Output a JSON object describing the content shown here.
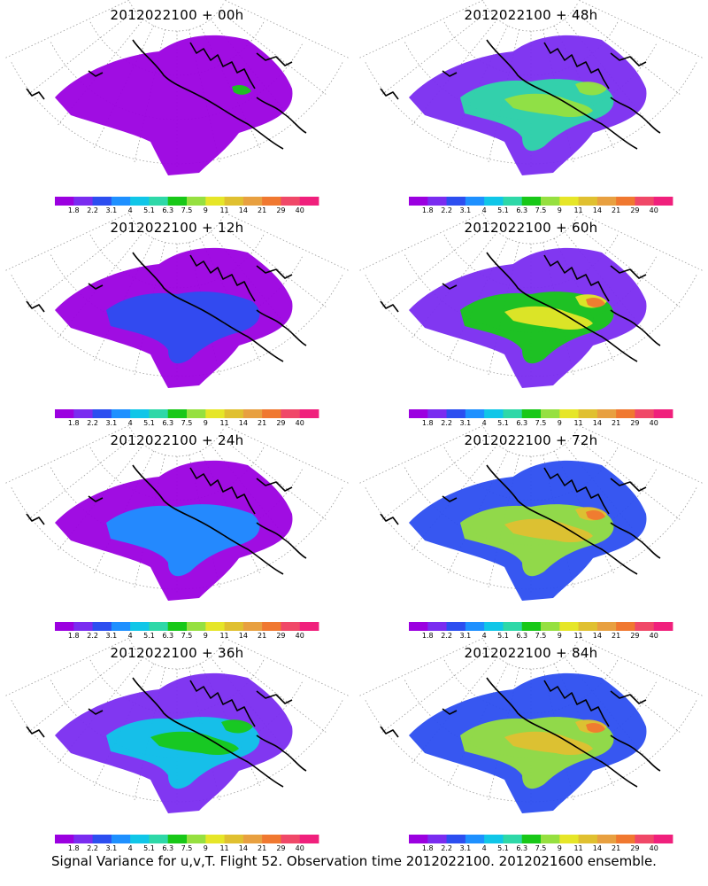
{
  "colors": {
    "scale": [
      "#9b00e0",
      "#7a2cf0",
      "#2c4ef0",
      "#1e90ff",
      "#10c6e8",
      "#2ed8a8",
      "#18c818",
      "#96e040",
      "#e6e628",
      "#e0c030",
      "#e8a040",
      "#f07830",
      "#f04868",
      "#f0207c"
    ],
    "coast": "#000000",
    "graticule": "#9a9a9a"
  },
  "legend_labels": [
    "1.8",
    "2.2",
    "3.1",
    "4",
    "5.1",
    "6.3",
    "7.5",
    "9",
    "11",
    "14",
    "21",
    "29",
    "40"
  ],
  "panels": [
    {
      "title": "2012022100 + 00h",
      "level": 0
    },
    {
      "title": "2012022100 + 48h",
      "level": 4
    },
    {
      "title": "2012022100 + 12h",
      "level": 1
    },
    {
      "title": "2012022100 + 60h",
      "level": 5
    },
    {
      "title": "2012022100 + 24h",
      "level": 2
    },
    {
      "title": "2012022100 + 72h",
      "level": 6
    },
    {
      "title": "2012022100 + 36h",
      "level": 3
    },
    {
      "title": "2012022100 + 84h",
      "level": 7
    }
  ],
  "footer": "Signal Variance for u,v,T. Flight 52. Observation time 2012022100. 2012021600 ensemble."
}
